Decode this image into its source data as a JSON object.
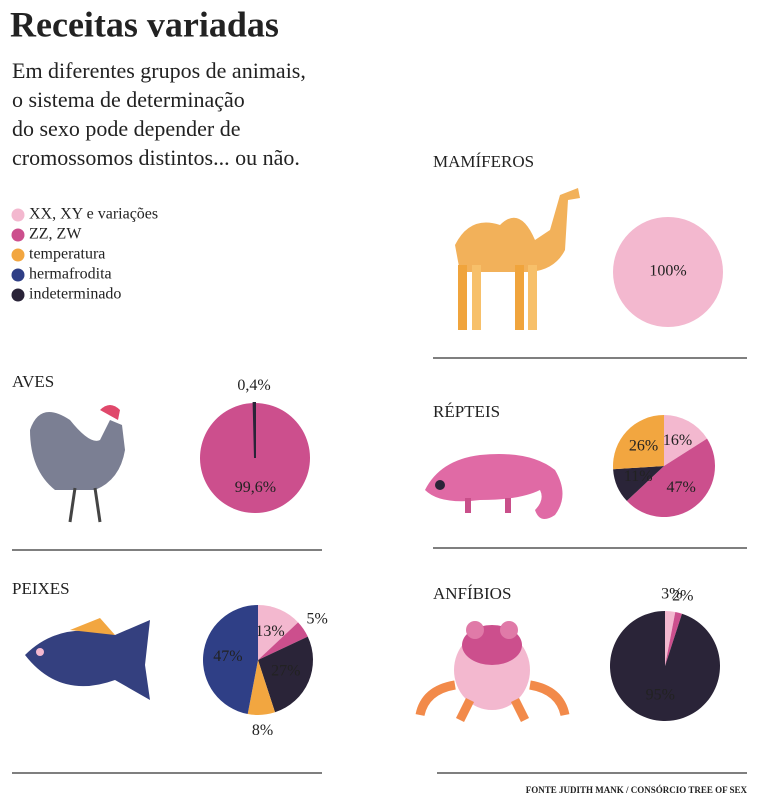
{
  "title": "Receitas variadas",
  "subtitle": [
    "Em diferentes grupos de animais,",
    "o sistema de determinação",
    "do sexo pode depender de",
    "cromossomos distintos... ou não."
  ],
  "legend": {
    "labels": [
      "XX, XY e variações",
      "ZZ, ZW",
      "temperatura",
      "hermafrodita",
      "indeterminado"
    ],
    "colors": [
      "#f3b8cf",
      "#cc4f8d",
      "#f2a640",
      "#2f3f86",
      "#2a2438"
    ]
  },
  "source": "FONTE JUDITH MANK / CONSÓRCIO TREE OF SEX",
  "chart_data": [
    {
      "type": "pie",
      "title": "MAMÍFEROS",
      "values": [
        100,
        null,
        null,
        null,
        null
      ],
      "value_labels": [
        "100%",
        null,
        null,
        null,
        null
      ]
    },
    {
      "type": "pie",
      "title": "AVES",
      "values": [
        null,
        99.6,
        null,
        null,
        0.4
      ],
      "value_labels": [
        null,
        "99,6%",
        null,
        null,
        "0,4%"
      ]
    },
    {
      "type": "pie",
      "title": "RÉPTEIS",
      "values": [
        16,
        47,
        26,
        null,
        11
      ],
      "value_labels": [
        "16%",
        "47%",
        "26%",
        null,
        "11%"
      ]
    },
    {
      "type": "pie",
      "title": "PEIXES",
      "values": [
        13,
        5,
        8,
        47,
        27
      ],
      "value_labels": [
        "13%",
        "5%",
        "8%",
        "47%",
        "27%"
      ]
    },
    {
      "type": "pie",
      "title": "ANFÍBIOS",
      "values": [
        3,
        2,
        null,
        null,
        95
      ],
      "value_labels": [
        "3%",
        "2%",
        null,
        null,
        "95%"
      ]
    }
  ]
}
